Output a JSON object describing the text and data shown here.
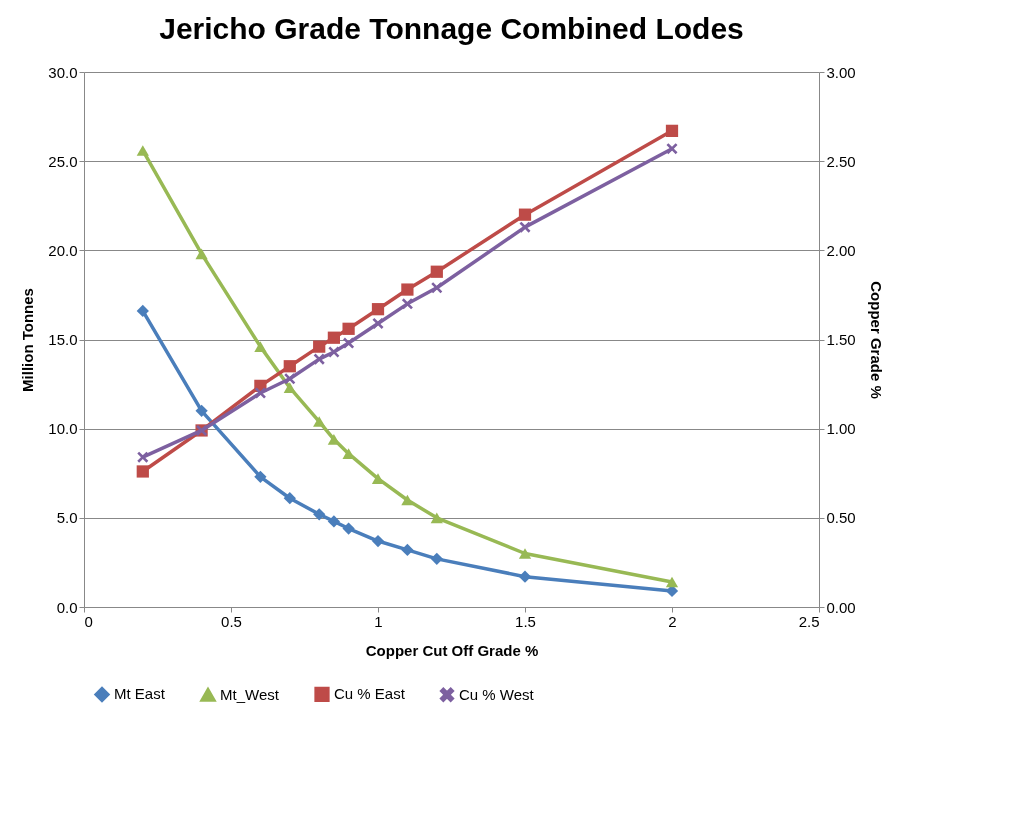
{
  "chart_data": {
    "type": "line",
    "title": "Jericho   Grade Tonnage  Combined Lodes",
    "xlabel": "Copper Cut Off Grade %",
    "ylabel": "Million Tonnes",
    "y2label": "Copper Grade %",
    "x": [
      0.2,
      0.4,
      0.6,
      0.7,
      0.8,
      0.85,
      0.9,
      1.0,
      1.1,
      1.2,
      1.5,
      2.0
    ],
    "series": [
      {
        "name": "Mt East",
        "color": "#4a7ebb",
        "marker": "diamond",
        "values": [
          16.6,
          11.0,
          7.3,
          6.1,
          5.2,
          4.8,
          4.4,
          3.7,
          3.2,
          2.7,
          1.7,
          0.9
        ]
      },
      {
        "name": "Mt_West",
        "color": "#98b954",
        "marker": "triangle",
        "values": [
          25.6,
          19.8,
          14.6,
          12.3,
          10.4,
          9.4,
          8.6,
          7.2,
          6.0,
          5.0,
          3.0,
          1.4
        ]
      },
      {
        "name": "Cu % East",
        "color": "#be4b48",
        "marker": "square",
        "axis": "y2",
        "values": [
          0.76,
          0.99,
          1.24,
          1.35,
          1.46,
          1.51,
          1.56,
          1.67,
          1.78,
          1.88,
          2.2,
          2.67
        ]
      },
      {
        "name": "Cu % West",
        "color": "#7d60a0",
        "marker": "cross",
        "axis": "y2",
        "values": [
          0.84,
          0.99,
          1.2,
          1.28,
          1.39,
          1.43,
          1.48,
          1.59,
          1.7,
          1.79,
          2.13,
          2.57
        ]
      }
    ],
    "xlim": [
      0,
      2.5
    ],
    "xticks": [
      0,
      0.5,
      1,
      1.5,
      2,
      2.5
    ],
    "ylim": [
      0,
      30
    ],
    "yticks": [
      {
        "value": 0,
        "label": "0.0"
      },
      {
        "value": 5,
        "label": "5.0"
      },
      {
        "value": 10,
        "label": "10.0"
      },
      {
        "value": 15,
        "label": "15.0"
      },
      {
        "value": 20,
        "label": "20.0"
      },
      {
        "value": 25,
        "label": "25.0"
      },
      {
        "value": 30,
        "label": "30.0"
      }
    ],
    "y2lim": [
      0,
      3
    ],
    "y2ticks": [
      {
        "value": 0,
        "label": "0.00"
      },
      {
        "value": 0.5,
        "label": "0.50"
      },
      {
        "value": 1,
        "label": "1.00"
      },
      {
        "value": 1.5,
        "label": "1.50"
      },
      {
        "value": 2,
        "label": "2.00"
      },
      {
        "value": 2.5,
        "label": "2.50"
      },
      {
        "value": 3,
        "label": "3.00"
      }
    ],
    "grid": "y",
    "legend": "bottom"
  }
}
